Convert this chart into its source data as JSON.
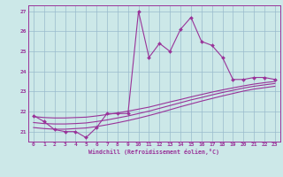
{
  "xlabel": "Windchill (Refroidissement éolien,°C)",
  "bg_color": "#cce8e8",
  "line_color": "#993399",
  "grid_color": "#99bbcc",
  "ylim": [
    20.5,
    27.3
  ],
  "xlim": [
    -0.5,
    23.5
  ],
  "yticks": [
    21,
    22,
    23,
    24,
    25,
    26,
    27
  ],
  "xticks": [
    0,
    1,
    2,
    3,
    4,
    5,
    6,
    7,
    8,
    9,
    10,
    11,
    12,
    13,
    14,
    15,
    16,
    17,
    18,
    19,
    20,
    21,
    22,
    23
  ],
  "main_x": [
    0,
    1,
    2,
    3,
    4,
    5,
    6,
    7,
    8,
    9,
    10,
    11,
    12,
    13,
    14,
    15,
    16,
    17,
    18,
    19,
    20,
    21,
    22,
    23
  ],
  "main_y": [
    21.8,
    21.5,
    21.1,
    21.0,
    21.0,
    20.7,
    21.2,
    21.9,
    21.9,
    21.9,
    27.0,
    24.7,
    25.4,
    25.0,
    26.1,
    26.7,
    25.5,
    25.3,
    24.7,
    23.6,
    23.6,
    23.7,
    23.7,
    23.6
  ],
  "l1_y": [
    21.75,
    21.7,
    21.68,
    21.68,
    21.7,
    21.72,
    21.78,
    21.85,
    21.93,
    22.02,
    22.12,
    22.22,
    22.35,
    22.48,
    22.6,
    22.73,
    22.85,
    22.97,
    23.08,
    23.18,
    23.28,
    23.37,
    23.44,
    23.5
  ],
  "l2_y": [
    21.45,
    21.4,
    21.38,
    21.38,
    21.4,
    21.43,
    21.5,
    21.58,
    21.68,
    21.78,
    21.9,
    22.02,
    22.16,
    22.3,
    22.44,
    22.58,
    22.7,
    22.83,
    22.95,
    23.06,
    23.17,
    23.26,
    23.33,
    23.4
  ],
  "l3_y": [
    21.2,
    21.15,
    21.12,
    21.12,
    21.15,
    21.18,
    21.25,
    21.34,
    21.44,
    21.55,
    21.67,
    21.8,
    21.94,
    22.09,
    22.24,
    22.38,
    22.52,
    22.65,
    22.78,
    22.9,
    23.02,
    23.12,
    23.19,
    23.26
  ]
}
